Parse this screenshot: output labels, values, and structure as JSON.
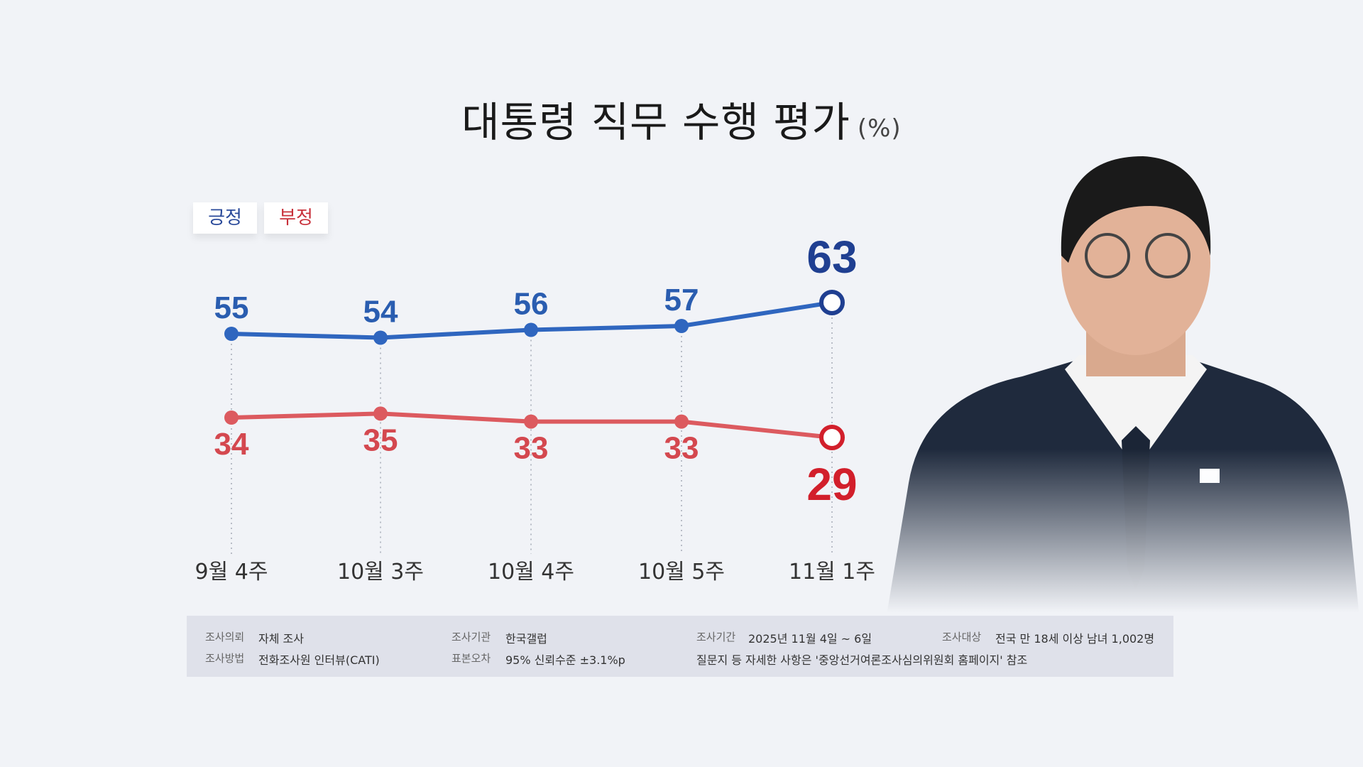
{
  "title": "대통령 직무 수행 평가",
  "unit": "(%)",
  "chart_data": {
    "type": "line",
    "title": "대통령 직무 수행 평가",
    "categories": [
      "9월 4주",
      "10월 3주",
      "10월 4주",
      "10월 5주",
      "11월 1주"
    ],
    "series": [
      {
        "name": "긍정",
        "values": [
          55,
          54,
          56,
          57,
          63
        ],
        "color": "#2f66bf",
        "label_color": "#2a5db0",
        "highlight_color": "#1f3f91"
      },
      {
        "name": "부정",
        "values": [
          34,
          35,
          33,
          33,
          29
        ],
        "color": "#dc5a5f",
        "label_color": "#d4484f",
        "highlight_color": "#d21f2b"
      }
    ],
    "legend": "top-left",
    "grid": false
  },
  "legend": {
    "positive": "긍정",
    "negative": "부정"
  },
  "footer": {
    "client_k": "조사의뢰",
    "client_v": "자체 조사",
    "org_k": "조사기관",
    "org_v": "한국갤럽",
    "period_k": "조사기간",
    "period_v": "2025년 11월 4일 ~ 6일",
    "target_k": "조사대상",
    "target_v": "전국 만 18세 이상 남녀 1,002명",
    "method_k": "조사방법",
    "method_v": "전화조사원 인터뷰(CATI)",
    "error_k": "표본오차",
    "error_v": "95% 신뢰수준 ±3.1%p",
    "note": "질문지 등 자세한 사항은 '중앙선거여론조사심의위원회 홈페이지' 참조"
  }
}
